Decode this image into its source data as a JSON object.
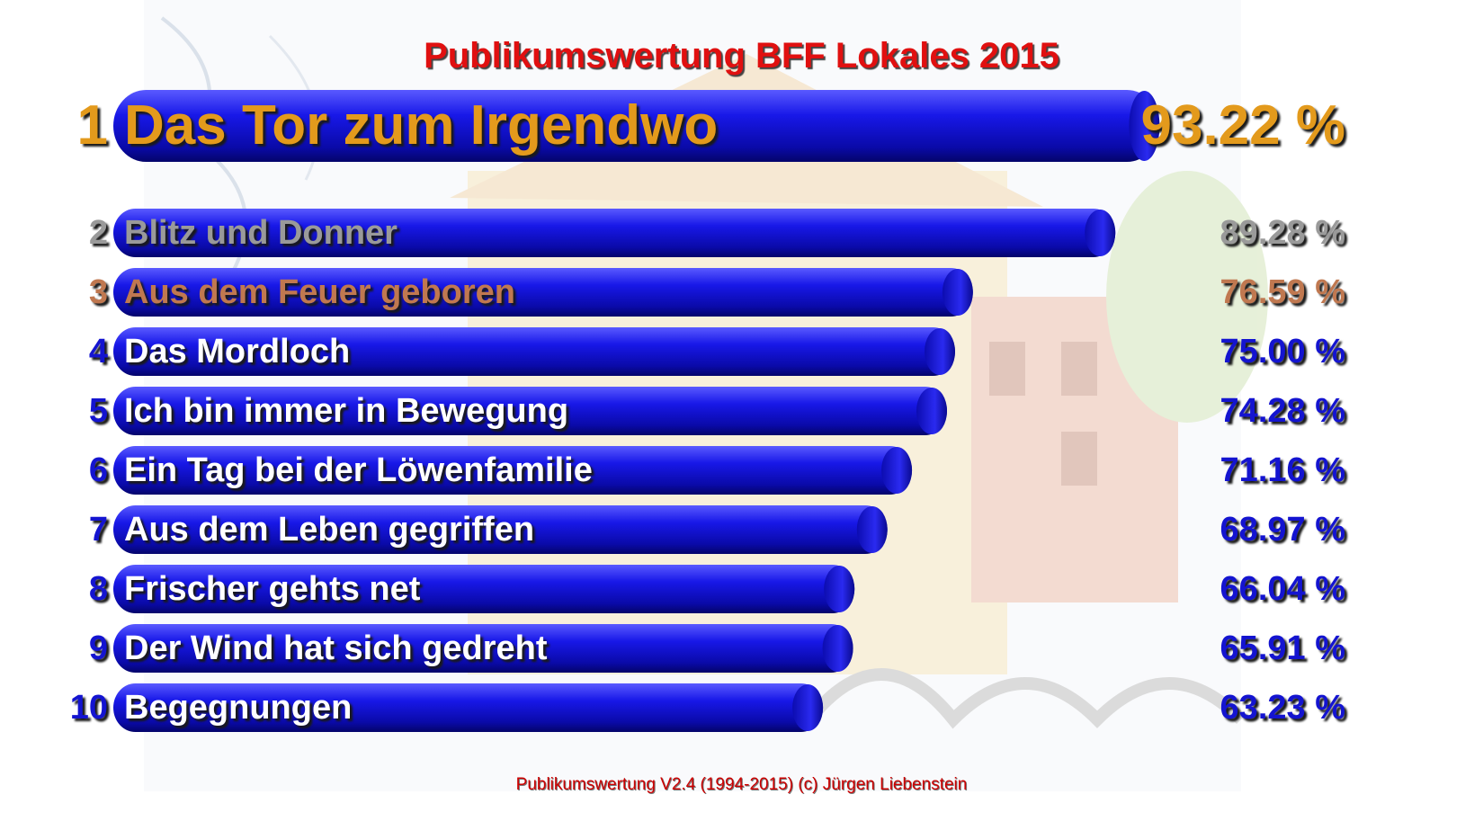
{
  "title": "Publikumswertung BFF Lokales 2015",
  "footer": "Publikumswertung V2.4 (1994-2015) (c) Jürgen Liebenstein",
  "colors": {
    "title": "#e01010",
    "bar": "#1a1ae0",
    "gold": "#e39a1c",
    "silver": "#9a9a9a",
    "bronze": "#c07850",
    "blue_text": "#1414d0",
    "white_text": "#ffffff"
  },
  "chart_data": {
    "type": "bar",
    "orientation": "horizontal",
    "title": "Publikumswertung BFF Lokales 2015",
    "xlabel": "",
    "ylabel": "",
    "unit": "%",
    "xlim": [
      0,
      100
    ],
    "grid": false,
    "legend": "none",
    "ranks": [
      "1",
      "2",
      "3",
      "4",
      "5",
      "6",
      "7",
      "8",
      "9",
      "10"
    ],
    "categories": [
      "Das Tor zum Irgendwo",
      "Blitz und Donner",
      "Aus dem Feuer geboren",
      "Das Mordloch",
      "Ich bin immer in Bewegung",
      "Ein Tag bei der Löwenfamilie",
      "Aus dem Leben gegriffen",
      "Frischer gehts net",
      "Der Wind hat sich gedreht",
      "Begegnungen"
    ],
    "values": [
      93.22,
      89.28,
      76.59,
      75.0,
      74.28,
      71.16,
      68.97,
      66.04,
      65.91,
      63.23
    ],
    "value_labels": [
      "93.22 %",
      "89.28 %",
      "76.59 %",
      "75.00 %",
      "74.28 %",
      "71.16 %",
      "68.97 %",
      "66.04 %",
      "65.91 %",
      "63.23 %"
    ],
    "text_colors": [
      "gold",
      "silver",
      "bronze",
      "white_text",
      "white_text",
      "white_text",
      "white_text",
      "white_text",
      "white_text",
      "white_text"
    ],
    "rank_colors": [
      "gold",
      "silver",
      "bronze",
      "blue_text",
      "blue_text",
      "blue_text",
      "blue_text",
      "blue_text",
      "blue_text",
      "blue_text"
    ]
  }
}
